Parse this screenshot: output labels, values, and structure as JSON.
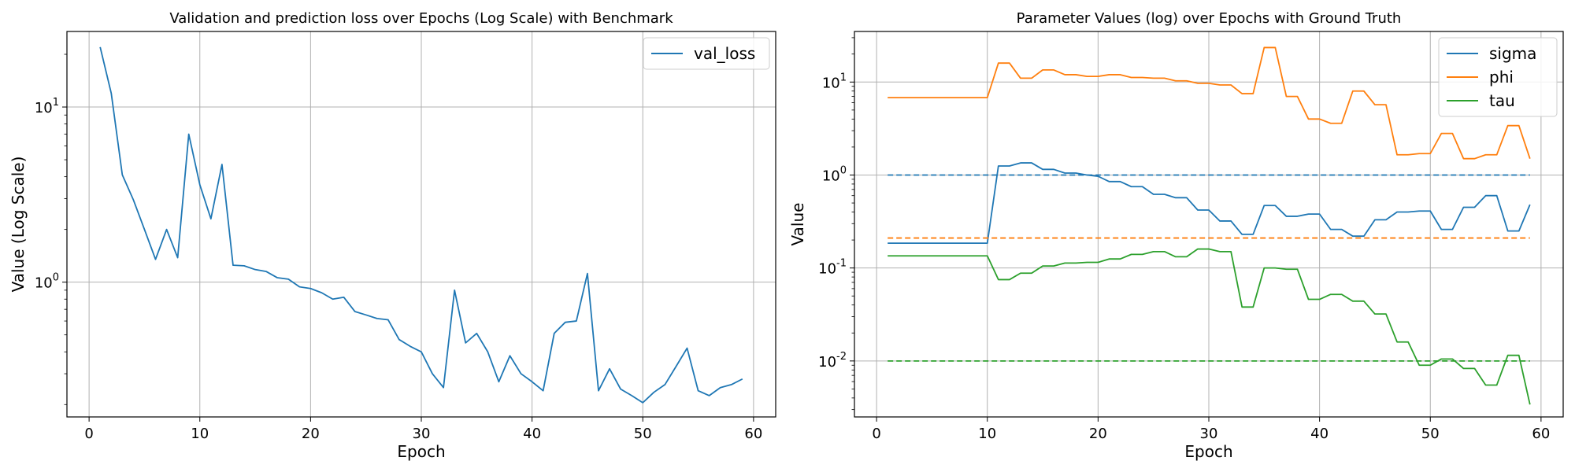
{
  "chart_data": [
    {
      "type": "line",
      "title": "Validation and prediction loss over Epochs (Log Scale) with Benchmark",
      "xlabel": "Epoch",
      "ylabel": "Value (Log Scale)",
      "yscale": "log",
      "xlim": [
        -2,
        62
      ],
      "ylim": [
        0.17,
        27
      ],
      "xticks": [
        0,
        10,
        20,
        30,
        40,
        50,
        60
      ],
      "yticks": [
        1,
        10
      ],
      "grid": true,
      "legend_position": "top-right",
      "series": [
        {
          "name": "val_loss",
          "color": "#1f77b4",
          "dash": "solid",
          "x": [
            1,
            2,
            3,
            4,
            5,
            6,
            7,
            8,
            9,
            10,
            11,
            12,
            13,
            14,
            15,
            16,
            17,
            18,
            19,
            20,
            21,
            22,
            23,
            24,
            25,
            26,
            27,
            28,
            29,
            30,
            31,
            32,
            33,
            34,
            35,
            36,
            37,
            38,
            39,
            40,
            41,
            42,
            43,
            44,
            45,
            46,
            47,
            48,
            49,
            50,
            51,
            52,
            53,
            54,
            55,
            56,
            57,
            58,
            59
          ],
          "y": [
            22,
            12,
            4.1,
            2.95,
            2.0,
            1.35,
            2.0,
            1.38,
            7.0,
            3.6,
            2.3,
            4.7,
            1.25,
            1.24,
            1.18,
            1.15,
            1.06,
            1.04,
            0.94,
            0.92,
            0.87,
            0.8,
            0.82,
            0.68,
            0.65,
            0.62,
            0.61,
            0.47,
            0.43,
            0.4,
            0.3,
            0.25,
            0.9,
            0.45,
            0.51,
            0.4,
            0.27,
            0.38,
            0.3,
            0.27,
            0.24,
            0.51,
            0.59,
            0.6,
            1.12,
            0.24,
            0.32,
            0.245,
            0.225,
            0.205,
            0.235,
            0.26,
            0.33,
            0.42,
            0.24,
            0.225,
            0.25,
            0.26,
            0.28
          ]
        }
      ]
    },
    {
      "type": "line",
      "title": "Parameter Values (log) over Epochs with Ground Truth",
      "xlabel": "Epoch",
      "ylabel": "Value",
      "yscale": "log",
      "xlim": [
        -2,
        62
      ],
      "ylim": [
        0.0025,
        35
      ],
      "xticks": [
        0,
        10,
        20,
        30,
        40,
        50,
        60
      ],
      "yticks": [
        0.01,
        0.1,
        1,
        10
      ],
      "grid": true,
      "legend_position": "top-right",
      "series": [
        {
          "name": "sigma",
          "color": "#1f77b4",
          "dash": "solid",
          "x": [
            1,
            2,
            3,
            4,
            5,
            6,
            7,
            8,
            9,
            10,
            11,
            12,
            13,
            14,
            15,
            16,
            17,
            18,
            19,
            20,
            21,
            22,
            23,
            24,
            25,
            26,
            27,
            28,
            29,
            30,
            31,
            32,
            33,
            34,
            35,
            36,
            37,
            38,
            39,
            40,
            41,
            42,
            43,
            44,
            45,
            46,
            47,
            48,
            49,
            50,
            51,
            52,
            53,
            54,
            55,
            56,
            57,
            58,
            59
          ],
          "y": [
            0.185,
            0.185,
            0.185,
            0.185,
            0.185,
            0.185,
            0.185,
            0.185,
            0.185,
            0.185,
            1.25,
            1.25,
            1.35,
            1.35,
            1.15,
            1.15,
            1.05,
            1.05,
            1.0,
            0.97,
            0.85,
            0.85,
            0.75,
            0.75,
            0.62,
            0.62,
            0.57,
            0.57,
            0.42,
            0.42,
            0.32,
            0.32,
            0.23,
            0.23,
            0.47,
            0.47,
            0.36,
            0.36,
            0.38,
            0.38,
            0.26,
            0.26,
            0.22,
            0.22,
            0.33,
            0.33,
            0.4,
            0.4,
            0.41,
            0.41,
            0.26,
            0.26,
            0.45,
            0.45,
            0.6,
            0.6,
            0.25,
            0.25,
            0.48
          ]
        },
        {
          "name": "phi",
          "color": "#ff7f0e",
          "dash": "solid",
          "x": [
            1,
            2,
            3,
            4,
            5,
            6,
            7,
            8,
            9,
            10,
            11,
            12,
            13,
            14,
            15,
            16,
            17,
            18,
            19,
            20,
            21,
            22,
            23,
            24,
            25,
            26,
            27,
            28,
            29,
            30,
            31,
            32,
            33,
            34,
            35,
            36,
            37,
            38,
            39,
            40,
            41,
            42,
            43,
            44,
            45,
            46,
            47,
            48,
            49,
            50,
            51,
            52,
            53,
            54,
            55,
            56,
            57,
            58,
            59
          ],
          "y": [
            6.8,
            6.8,
            6.8,
            6.8,
            6.8,
            6.8,
            6.8,
            6.8,
            6.8,
            6.8,
            16,
            16,
            11,
            11,
            13.5,
            13.5,
            12,
            12,
            11.5,
            11.5,
            12,
            12,
            11.2,
            11.2,
            11,
            11,
            10.3,
            10.3,
            9.7,
            9.7,
            9.3,
            9.3,
            7.5,
            7.5,
            23.5,
            23.5,
            7.0,
            7.0,
            4.0,
            4.0,
            3.6,
            3.6,
            8.0,
            8.0,
            5.7,
            5.7,
            1.65,
            1.65,
            1.7,
            1.7,
            2.8,
            2.8,
            1.5,
            1.5,
            1.65,
            1.65,
            3.4,
            3.4,
            1.5
          ]
        },
        {
          "name": "tau",
          "color": "#2ca02c",
          "dash": "solid",
          "x": [
            1,
            2,
            3,
            4,
            5,
            6,
            7,
            8,
            9,
            10,
            11,
            12,
            13,
            14,
            15,
            16,
            17,
            18,
            19,
            20,
            21,
            22,
            23,
            24,
            25,
            26,
            27,
            28,
            29,
            30,
            31,
            32,
            33,
            34,
            35,
            36,
            37,
            38,
            39,
            40,
            41,
            42,
            43,
            44,
            45,
            46,
            47,
            48,
            49,
            50,
            51,
            52,
            53,
            54,
            55,
            56,
            57,
            58,
            59
          ],
          "y": [
            0.135,
            0.135,
            0.135,
            0.135,
            0.135,
            0.135,
            0.135,
            0.135,
            0.135,
            0.135,
            0.075,
            0.075,
            0.088,
            0.088,
            0.105,
            0.105,
            0.113,
            0.113,
            0.115,
            0.115,
            0.125,
            0.125,
            0.14,
            0.14,
            0.15,
            0.15,
            0.132,
            0.132,
            0.16,
            0.16,
            0.15,
            0.15,
            0.038,
            0.038,
            0.1,
            0.1,
            0.097,
            0.097,
            0.046,
            0.046,
            0.052,
            0.052,
            0.044,
            0.044,
            0.032,
            0.032,
            0.016,
            0.016,
            0.009,
            0.009,
            0.0105,
            0.0105,
            0.0083,
            0.0083,
            0.0055,
            0.0055,
            0.0115,
            0.0115,
            0.0034
          ]
        },
        {
          "color": "#1f77b4",
          "dash": "dashed",
          "x": [
            1,
            59
          ],
          "y": [
            1.0,
            1.0
          ]
        },
        {
          "color": "#ff7f0e",
          "dash": "dashed",
          "x": [
            1,
            59
          ],
          "y": [
            0.21,
            0.21
          ]
        },
        {
          "color": "#2ca02c",
          "dash": "dashed",
          "x": [
            1,
            59
          ],
          "y": [
            0.01,
            0.01
          ]
        }
      ]
    }
  ]
}
